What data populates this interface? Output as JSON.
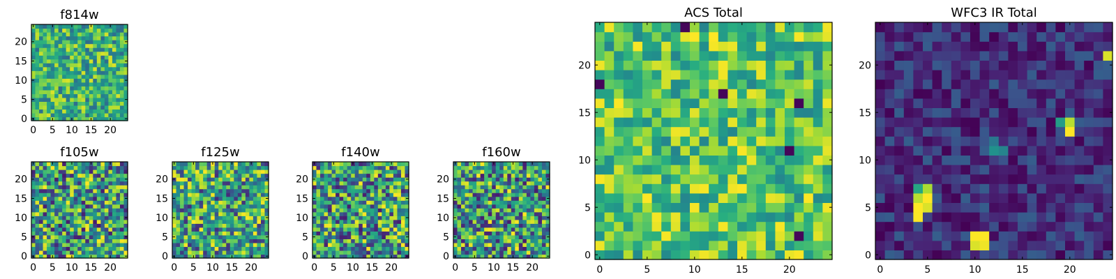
{
  "colormap": "viridis",
  "chart_data": [
    {
      "type": "heatmap",
      "title": "f814w",
      "size": 25,
      "xticks": [
        0,
        5,
        10,
        15,
        20
      ],
      "yticks": [
        0,
        5,
        10,
        15,
        20
      ],
      "value_range": [
        0.35,
        0.95
      ],
      "seed": 3
    },
    {
      "type": "heatmap",
      "title": "f105w",
      "size": 25,
      "xticks": [
        0,
        5,
        10,
        15,
        20
      ],
      "yticks": [
        0,
        5,
        10,
        15,
        20
      ],
      "value_range": [
        0.1,
        1.0
      ],
      "seed": 7
    },
    {
      "type": "heatmap",
      "title": "f125w",
      "size": 25,
      "xticks": [
        0,
        5,
        10,
        15,
        20
      ],
      "yticks": [
        0,
        5,
        10,
        15,
        20
      ],
      "value_range": [
        0.15,
        1.0
      ],
      "seed": 11
    },
    {
      "type": "heatmap",
      "title": "f140w",
      "size": 25,
      "xticks": [
        0,
        5,
        10,
        15,
        20
      ],
      "yticks": [
        0,
        5,
        10,
        15,
        20
      ],
      "value_range": [
        0.1,
        1.0
      ],
      "seed": 17
    },
    {
      "type": "heatmap",
      "title": "f160w",
      "size": 25,
      "xticks": [
        0,
        5,
        10,
        15,
        20
      ],
      "yticks": [
        0,
        5,
        10,
        15,
        20
      ],
      "value_range": [
        0.1,
        1.0
      ],
      "seed": 23
    },
    {
      "type": "heatmap",
      "title": "ACS Total",
      "size": 25,
      "xticks": [
        0,
        5,
        10,
        15,
        20
      ],
      "yticks": [
        0,
        5,
        10,
        15,
        20
      ],
      "value_range": [
        0.45,
        1.0
      ],
      "seed": 31,
      "low_pixels": [
        [
          0,
          18
        ],
        [
          9,
          24
        ],
        [
          13,
          17
        ],
        [
          21,
          16
        ],
        [
          20,
          11
        ],
        [
          21,
          2
        ]
      ]
    },
    {
      "type": "heatmap",
      "title": "WFC3 IR Total",
      "size": 25,
      "xticks": [
        0,
        5,
        10,
        15,
        20
      ],
      "yticks": [
        0,
        5,
        10,
        15,
        20
      ],
      "value_range": [
        0.0,
        0.3
      ],
      "seed": 41,
      "bright_pixels": [
        [
          4,
          4,
          1.0
        ],
        [
          4,
          5,
          1.0
        ],
        [
          4,
          6,
          0.9
        ],
        [
          5,
          5,
          0.95
        ],
        [
          5,
          6,
          1.0
        ],
        [
          5,
          7,
          0.88
        ],
        [
          4,
          7,
          0.6
        ],
        [
          10,
          2,
          1.0
        ],
        [
          11,
          2,
          1.0
        ],
        [
          10,
          1,
          0.95
        ],
        [
          11,
          1,
          0.98
        ],
        [
          20,
          13,
          1.0
        ],
        [
          20,
          14,
          0.9
        ],
        [
          19,
          14,
          0.55
        ],
        [
          12,
          11,
          0.5
        ],
        [
          13,
          11,
          0.45
        ],
        [
          12,
          12,
          0.4
        ],
        [
          24,
          21,
          0.95
        ]
      ]
    }
  ]
}
